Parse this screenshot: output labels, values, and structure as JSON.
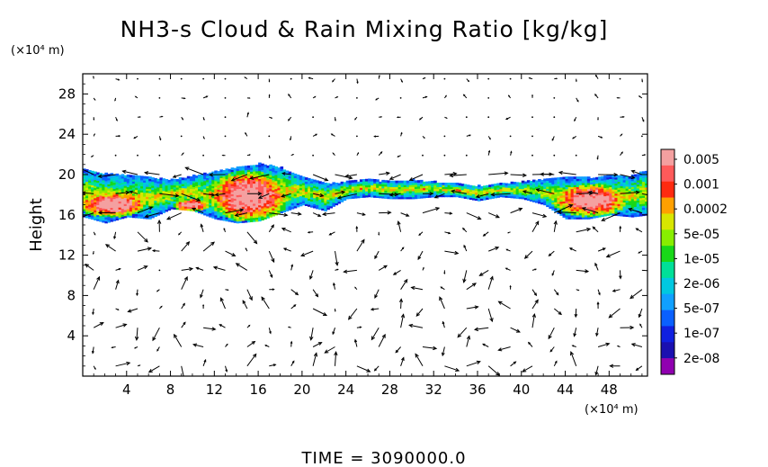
{
  "chart_data": {
    "type": "heatmap",
    "title": "NH3-s Cloud & Rain Mixing Ratio [kg/kg]",
    "xlabel": "",
    "ylabel": "Height",
    "x_unit": "(×10⁴ m)",
    "y_unit": "(×10⁴ m)",
    "xlim": [
      0,
      51.5
    ],
    "ylim": [
      0,
      30
    ],
    "xticks": [
      4,
      8,
      12,
      16,
      20,
      24,
      28,
      32,
      36,
      40,
      44,
      48
    ],
    "yticks": [
      4,
      8,
      12,
      16,
      20,
      24,
      28
    ],
    "time_label": "TIME  =  3090000.0",
    "colorbar": {
      "labels": [
        "0.005",
        "0.001",
        "0.0002",
        "5e-05",
        "1e-05",
        "2e-06",
        "5e-07",
        "1e-07",
        "2e-08"
      ],
      "colors": [
        "#f4a0a0",
        "#ff5a5a",
        "#ff2a10",
        "#ffa000",
        "#d8e600",
        "#88ee00",
        "#18d818",
        "#00e098",
        "#00c8e0",
        "#10a0ff",
        "#0a60ff",
        "#1020e0",
        "#1a10b0",
        "#9000b0"
      ]
    },
    "cloud_layer": {
      "base_profile": {
        "x": [
          0,
          2,
          4,
          6,
          8,
          10,
          12,
          14,
          16,
          18,
          20,
          22,
          24,
          26,
          28,
          30,
          32,
          34,
          36,
          38,
          40,
          42,
          44,
          46,
          48,
          50,
          51.5
        ],
        "y": [
          15.8,
          15.2,
          15.8,
          15.6,
          16.6,
          16.4,
          15.6,
          15.2,
          15.4,
          16.2,
          17.0,
          16.4,
          17.6,
          17.8,
          17.6,
          17.6,
          17.8,
          17.8,
          17.4,
          17.8,
          17.6,
          17.0,
          15.6,
          15.6,
          16.0,
          15.8,
          16.0
        ]
      },
      "top_profile": {
        "x": [
          0,
          2,
          4,
          6,
          8,
          10,
          12,
          14,
          16,
          18,
          20,
          22,
          24,
          26,
          28,
          30,
          32,
          34,
          36,
          38,
          40,
          42,
          44,
          46,
          48,
          50,
          51.5
        ],
        "y": [
          20.4,
          20.0,
          19.8,
          19.6,
          19.4,
          19.8,
          20.2,
          20.6,
          21.0,
          20.6,
          19.6,
          19.0,
          19.2,
          19.4,
          19.2,
          19.4,
          19.2,
          19.0,
          18.8,
          19.0,
          19.2,
          19.4,
          19.6,
          19.6,
          19.8,
          19.8,
          20.4
        ]
      },
      "peak_regions": [
        {
          "x_center": 2.6,
          "y_center": 17.0,
          "x_halfwidth": 2.6,
          "y_halfwidth": 1.0
        },
        {
          "x_center": 9.8,
          "y_center": 16.9,
          "x_halfwidth": 1.4,
          "y_halfwidth": 0.5
        },
        {
          "x_center": 15.0,
          "y_center": 17.8,
          "x_halfwidth": 3.0,
          "y_halfwidth": 2.0
        },
        {
          "x_center": 46.2,
          "y_center": 17.4,
          "x_halfwidth": 2.8,
          "y_halfwidth": 1.3
        }
      ]
    },
    "wind_vectors": {
      "description_free": true,
      "grid_x_step": 2.0,
      "grid_y_step": 1.9
    }
  }
}
